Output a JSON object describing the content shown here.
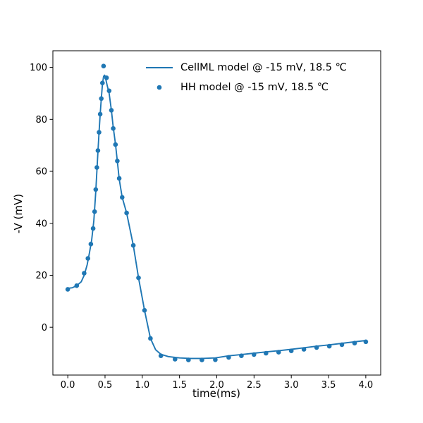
{
  "figure": {
    "background": "#ffffff",
    "text_color": "#000000",
    "spine_color": "#000000"
  },
  "legend": {
    "position": "upper right",
    "entries": [
      {
        "swatch": "line-sample",
        "label": "CellML model @ -15 mV, 18.5 ℃"
      },
      {
        "swatch": "dot-sample",
        "label": "HH model @ -15 mV, 18.5 ℃"
      }
    ]
  },
  "chart_data": {
    "type": "line",
    "title": "",
    "xlabel": "time(ms)",
    "ylabel": "-V (mV)",
    "xlim": [
      -0.2,
      4.2
    ],
    "ylim": [
      -18.4,
      106.4
    ],
    "grid": false,
    "legend_position": "upper right",
    "color": "#1f77b4",
    "x_ticks": {
      "values": [
        0.0,
        0.5,
        1.0,
        1.5,
        2.0,
        2.5,
        3.0,
        3.5,
        4.0
      ],
      "labels": [
        "0.0",
        "0.5",
        "1.0",
        "1.5",
        "2.0",
        "2.5",
        "3.0",
        "3.5",
        "4.0"
      ]
    },
    "y_ticks": {
      "values": [
        0,
        20,
        40,
        60,
        80,
        100
      ],
      "labels": [
        "0",
        "20",
        "40",
        "60",
        "80",
        "100"
      ]
    },
    "series": [
      {
        "name": "CellML model @ -15 mV, 18.5 ℃",
        "style": "line",
        "x": [
          0.0,
          0.06,
          0.12,
          0.18,
          0.22,
          0.26,
          0.29,
          0.32,
          0.35,
          0.375,
          0.39,
          0.405,
          0.42,
          0.435,
          0.45,
          0.465,
          0.48,
          0.495,
          0.51,
          0.53,
          0.555,
          0.585,
          0.61,
          0.64,
          0.665,
          0.69,
          0.73,
          0.79,
          0.88,
          0.95,
          1.03,
          1.11,
          1.18,
          1.25,
          1.35,
          1.5,
          1.65,
          1.8,
          1.98,
          2.16,
          2.33,
          2.5,
          2.66,
          2.83,
          3.0,
          3.17,
          3.34,
          3.51,
          3.68,
          3.85,
          4.0
        ],
        "y": [
          15.0,
          15.2,
          16.0,
          17.5,
          20.0,
          24.0,
          28.5,
          33.5,
          41.0,
          52.0,
          60.0,
          67.5,
          75.0,
          82.0,
          88.0,
          93.5,
          96.5,
          97.0,
          95.5,
          93.0,
          90.0,
          83.5,
          77.0,
          70.5,
          64.0,
          57.0,
          50.0,
          44.0,
          31.5,
          19.0,
          6.5,
          -4.3,
          -8.7,
          -10.4,
          -11.3,
          -11.8,
          -12.0,
          -12.0,
          -11.8,
          -11.0,
          -10.5,
          -10.0,
          -9.5,
          -9.0,
          -8.5,
          -7.9,
          -7.3,
          -6.8,
          -6.2,
          -5.6,
          -5.1
        ]
      },
      {
        "name": "HH model @ -15 mV, 18.5 ℃",
        "style": "scatter",
        "x": [
          0.0,
          0.12,
          0.22,
          0.27,
          0.31,
          0.34,
          0.36,
          0.375,
          0.39,
          0.405,
          0.42,
          0.435,
          0.45,
          0.465,
          0.48,
          0.52,
          0.555,
          0.585,
          0.61,
          0.64,
          0.665,
          0.69,
          0.73,
          0.79,
          0.88,
          0.95,
          1.03,
          1.11,
          1.25,
          1.44,
          1.62,
          1.8,
          1.98,
          2.16,
          2.33,
          2.5,
          2.66,
          2.83,
          3.0,
          3.17,
          3.34,
          3.51,
          3.68,
          3.85,
          4.0
        ],
        "y": [
          14.6,
          16.0,
          20.8,
          26.5,
          32.0,
          38.0,
          44.5,
          53.0,
          61.5,
          68.0,
          75.0,
          82.0,
          88.0,
          94.0,
          100.5,
          96.0,
          91.0,
          83.5,
          76.5,
          70.3,
          64.0,
          57.3,
          50.0,
          44.0,
          31.5,
          19.0,
          6.5,
          -4.3,
          -11.0,
          -12.3,
          -12.6,
          -12.6,
          -12.5,
          -11.6,
          -11.0,
          -10.5,
          -10.0,
          -9.6,
          -9.1,
          -8.5,
          -7.8,
          -7.3,
          -6.7,
          -6.1,
          -5.6
        ]
      }
    ]
  }
}
